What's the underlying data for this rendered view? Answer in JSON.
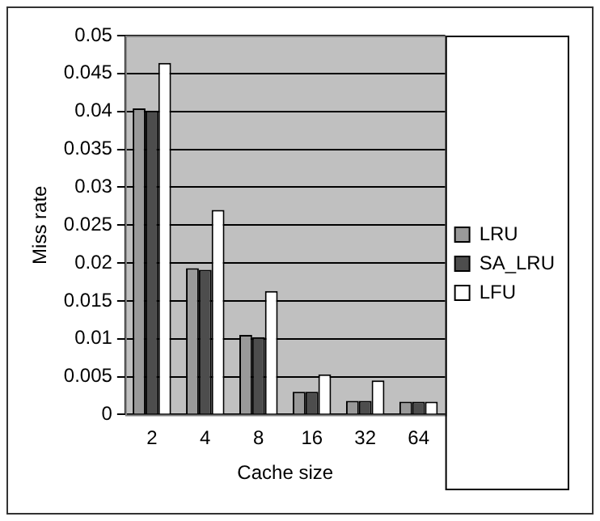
{
  "chart_data": {
    "type": "bar",
    "xlabel": "Cache size",
    "ylabel": "Miss rate",
    "categories": [
      "2",
      "4",
      "8",
      "16",
      "32",
      "64"
    ],
    "series": [
      {
        "name": "LRU",
        "color": "#999999",
        "values": [
          0.0404,
          0.0193,
          0.0105,
          0.003,
          0.0018,
          0.0017
        ]
      },
      {
        "name": "SA_LRU",
        "color": "#4d4d4d",
        "values": [
          0.0401,
          0.0191,
          0.0102,
          0.003,
          0.0018,
          0.0017
        ]
      },
      {
        "name": "LFU",
        "color": "#ffffff",
        "values": [
          0.0464,
          0.027,
          0.0163,
          0.0053,
          0.0045,
          0.0017
        ]
      }
    ],
    "ylim": [
      0,
      0.05
    ],
    "yticks": [
      0,
      0.005,
      0.01,
      0.015,
      0.02,
      0.025,
      0.03,
      0.035,
      0.04,
      0.045,
      0.05
    ],
    "grid": "y",
    "legend": "right"
  }
}
